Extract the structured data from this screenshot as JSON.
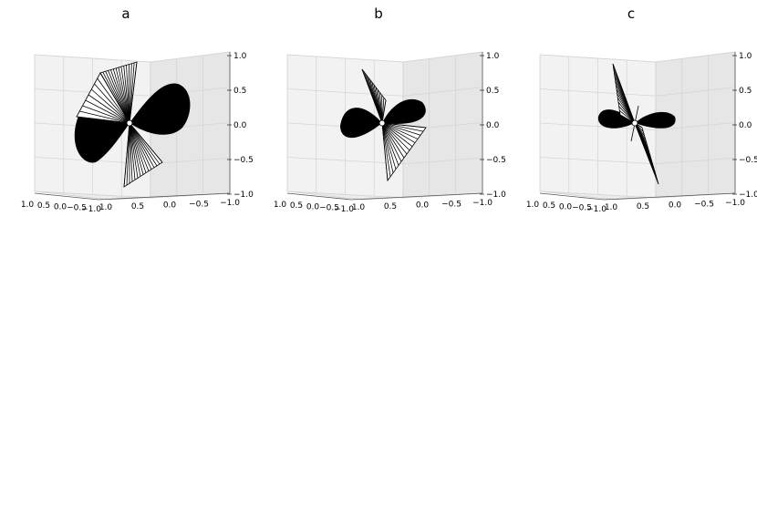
{
  "chart_data": [
    {
      "type": "surface3d",
      "title": "a",
      "zlim": [
        -1.0,
        1.0
      ],
      "z_ticks": [
        "1.0",
        "0.5",
        "0.0",
        "−0.5",
        "−1.0"
      ],
      "x_ticks": [
        "1.0",
        "0.5",
        "0.0",
        "−0.5",
        "−1.0"
      ],
      "y_ticks": [
        "1.0",
        "0.5",
        "0.0",
        "−0.5",
        "−1.0"
      ],
      "grid": true,
      "colors": {
        "surface": "#000000",
        "mesh": "#ffffff"
      }
    },
    {
      "type": "surface3d",
      "title": "b",
      "zlim": [
        -1.0,
        1.0
      ],
      "z_ticks": [
        "1.0",
        "0.5",
        "0.0",
        "−0.5",
        "−1.0"
      ],
      "x_ticks": [
        "1.0",
        "0.5",
        "0.0",
        "−0.5",
        "−1.0"
      ],
      "y_ticks": [
        "1.0",
        "0.5",
        "0.0",
        "−0.5",
        "−1.0"
      ],
      "grid": true,
      "colors": {
        "surface": "#000000",
        "mesh": "#ffffff"
      }
    },
    {
      "type": "surface3d",
      "title": "c",
      "zlim": [
        -1.0,
        1.0
      ],
      "z_ticks": [
        "1.0",
        "0.5",
        "0.0",
        "−0.5",
        "−1.0"
      ],
      "x_ticks": [
        "1.0",
        "0.5",
        "0.0",
        "−0.5",
        "−1.0"
      ],
      "y_ticks": [
        "1.0",
        "0.5",
        "0.0",
        "−0.5",
        "−1.0"
      ],
      "grid": true,
      "colors": {
        "surface": "#000000",
        "mesh": "#ffffff"
      }
    }
  ]
}
